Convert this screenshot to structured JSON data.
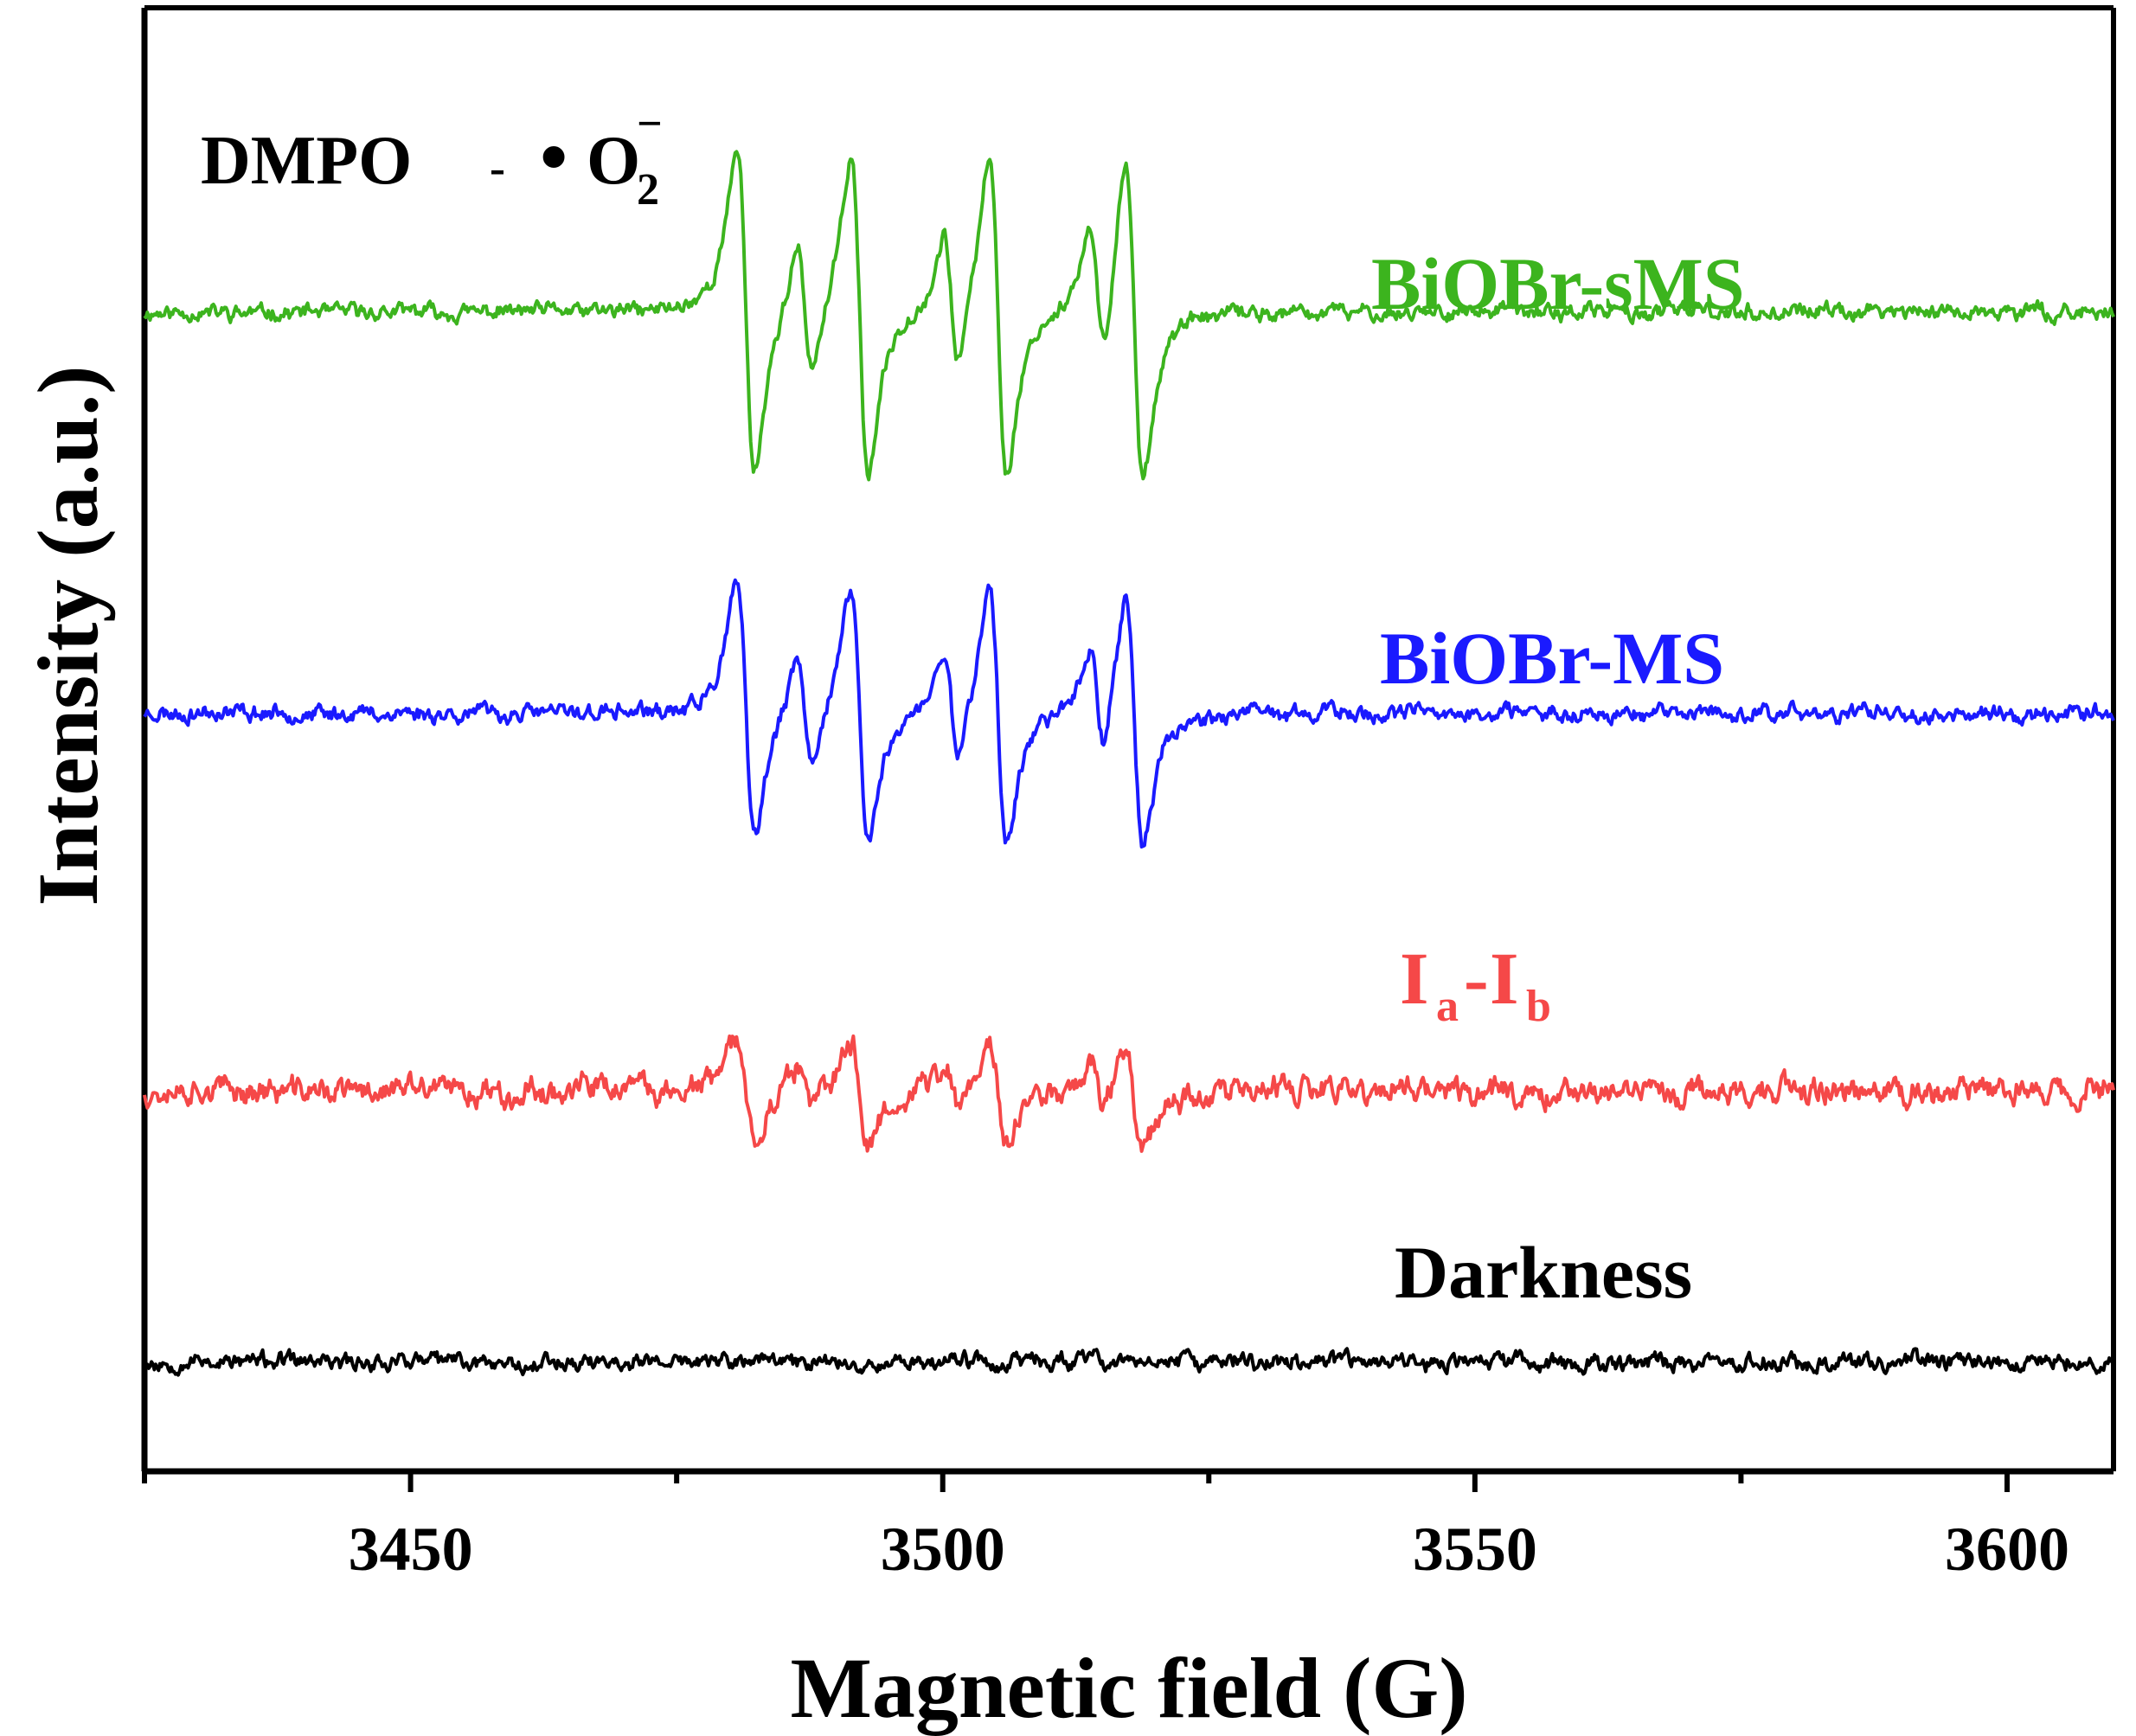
{
  "chart_data": {
    "type": "line",
    "title": "",
    "annotation": {
      "prefix": "DMPO",
      "sep": "-",
      "radical_bullet": "•",
      "radical_main": "O",
      "radical_sub": "2",
      "radical_sup": "−"
    },
    "xlabel": "Magnetic field (G)",
    "ylabel": "Intensity (a.u.)",
    "xlim": [
      3425,
      3610
    ],
    "ylim": [
      0,
      100
    ],
    "x_ticks": [
      3450,
      3500,
      3550,
      3600
    ],
    "x_tick_labels": [
      "3450",
      "3500",
      "3550",
      "3600"
    ],
    "grid": false,
    "peaks": [
      3481.5,
      3492.2,
      3505.2,
      3518.0
    ],
    "minor_peaks": [
      3487.0,
      3500.8,
      3514.5
    ],
    "series": [
      {
        "name": "BiOBr-sMS",
        "label": "BiOBr-sMS",
        "color": "#3cb41e",
        "baseline": 79.2,
        "amplitude": 22.0,
        "noise": 0.65,
        "seed": 11
      },
      {
        "name": "BiOBr-MS",
        "label": "BiOBr-MS",
        "color": "#1a1aff",
        "baseline": 51.8,
        "amplitude": 17.5,
        "noise": 0.7,
        "seed": 23
      },
      {
        "name": "Ia-Ib",
        "label_main": "I",
        "label_sub_a": "a",
        "label_dash": "-",
        "label_sub_b": "b",
        "color": "#f54848",
        "baseline": 26.0,
        "amplitude": 7.0,
        "noise": 1.1,
        "seed": 37
      },
      {
        "name": "Darkness",
        "label": "Darkness",
        "color": "#000000",
        "baseline": 7.5,
        "amplitude": 0.0,
        "noise": 0.7,
        "seed": 53
      }
    ]
  }
}
